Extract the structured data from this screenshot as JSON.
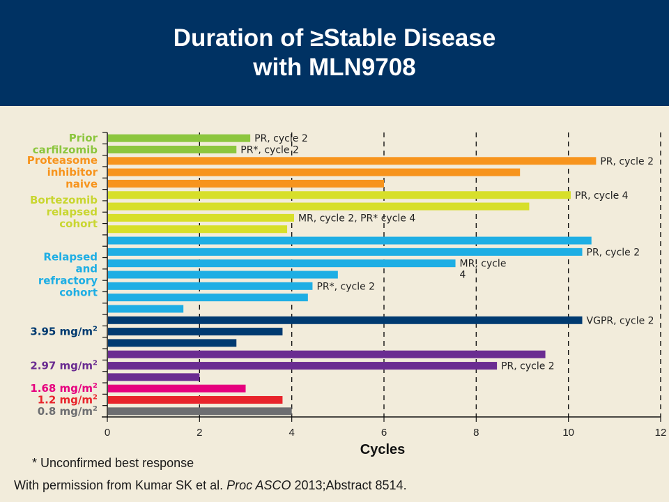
{
  "title_line1": "Duration of ≥Stable Disease",
  "title_line2": "with MLN9708",
  "footnote": "* Unconfirmed best response",
  "citation": {
    "prefix": "With permission from Kumar SK et al. ",
    "journal": "Proc ASCO",
    "suffix": " 2013;Abstract 8514."
  },
  "colors": {
    "header_bg": "#003263",
    "background": "#f2ecdb"
  },
  "chart_data": {
    "type": "bar",
    "orientation": "horizontal",
    "xlabel": "Cycles",
    "xlim": [
      0,
      12
    ],
    "xticks": [
      0,
      2,
      4,
      6,
      8,
      10,
      12
    ],
    "grid": "dashed vertical lines at each x tick",
    "groups": [
      {
        "label": [
          "Prior",
          "carfilzomib"
        ],
        "color": "#8cc63e",
        "bars": [
          {
            "value": 3.1,
            "annotation": "PR, cycle 2"
          },
          {
            "value": 2.8,
            "annotation": "PR*, cycle 2"
          }
        ]
      },
      {
        "label": [
          "Proteasome",
          "inhibitor",
          "naive"
        ],
        "color": "#f7941d",
        "bars": [
          {
            "value": 10.6,
            "annotation": "PR, cycle 2"
          },
          {
            "value": 8.95,
            "annotation": ""
          },
          {
            "value": 6.0,
            "annotation": ""
          }
        ]
      },
      {
        "label": [
          "Bortezomib",
          "relapsed",
          "cohort"
        ],
        "color": "#c9d631",
        "bar_color": "#d7df2a",
        "bars": [
          {
            "value": 10.05,
            "annotation": "PR, cycle 4"
          },
          {
            "value": 9.15,
            "annotation": ""
          },
          {
            "value": 4.05,
            "annotation": "MR, cycle 2, PR* cycle 4"
          },
          {
            "value": 3.9,
            "annotation": ""
          }
        ]
      },
      {
        "label": [
          "Relapsed",
          "and",
          "refractory",
          "cohort"
        ],
        "color": "#1eaee4",
        "bars": [
          {
            "value": 10.5,
            "annotation": ""
          },
          {
            "value": 10.3,
            "annotation": "PR, cycle 2"
          },
          {
            "value": 7.55,
            "annotation": [
              "MR, cycle",
              "4"
            ]
          },
          {
            "value": 5.0,
            "annotation": ""
          },
          {
            "value": 4.45,
            "annotation": "PR*, cycle 2"
          },
          {
            "value": 4.35,
            "annotation": ""
          },
          {
            "value": 1.65,
            "annotation": ""
          }
        ]
      },
      {
        "label": [
          "3.95 mg/m²"
        ],
        "color": "#003a70",
        "bars": [
          {
            "value": 10.3,
            "annotation": "VGPR, cycle 2"
          },
          {
            "value": 3.8,
            "annotation": ""
          },
          {
            "value": 2.8,
            "annotation": ""
          }
        ]
      },
      {
        "label": [
          "2.97 mg/m²"
        ],
        "color": "#6a2c91",
        "bars": [
          {
            "value": 9.5,
            "annotation": ""
          },
          {
            "value": 8.45,
            "annotation": "PR, cycle 2"
          },
          {
            "value": 2.0,
            "annotation": ""
          }
        ]
      },
      {
        "label": [
          "1.68 mg/m²"
        ],
        "color": "#e6007e",
        "bars": [
          {
            "value": 3.0,
            "annotation": ""
          }
        ]
      },
      {
        "label": [
          "1.2 mg/m²"
        ],
        "color": "#e8242b",
        "bars": [
          {
            "value": 3.8,
            "annotation": ""
          }
        ]
      },
      {
        "label": [
          "0.8 mg/m²"
        ],
        "color": "#6d6e71",
        "bars": [
          {
            "value": 4.0,
            "annotation": ""
          }
        ]
      }
    ]
  }
}
